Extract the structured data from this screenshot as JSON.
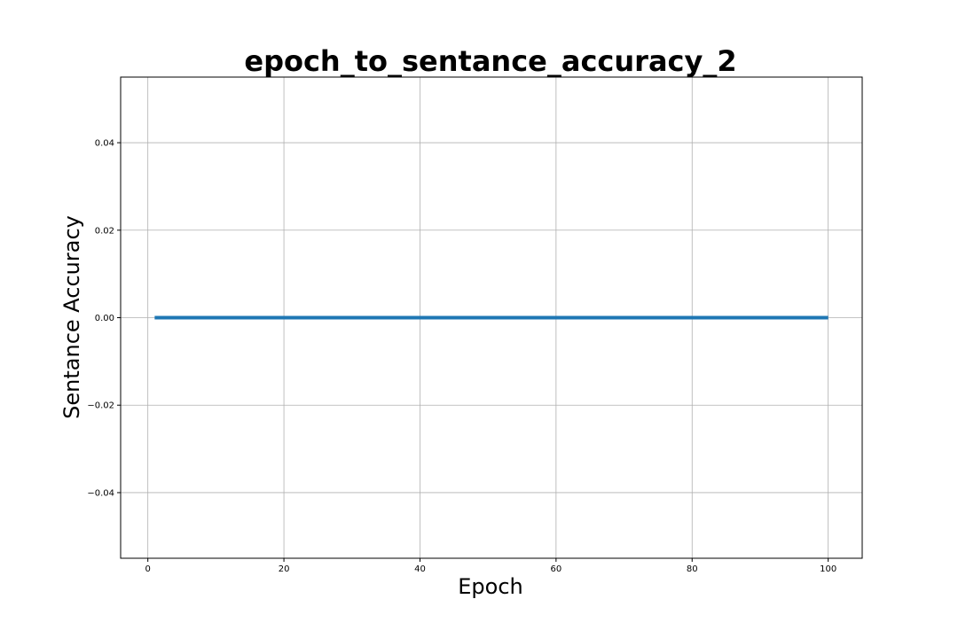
{
  "chart_data": {
    "type": "line",
    "title": "epoch_to_sentance_accuracy_2",
    "xlabel": "Epoch",
    "ylabel": "Sentance Accuracy",
    "xlim": [
      -4,
      105
    ],
    "ylim": [
      -0.055,
      0.055
    ],
    "x_ticks": [
      0,
      20,
      40,
      60,
      80,
      100
    ],
    "x_tick_labels": [
      "0",
      "20",
      "40",
      "60",
      "80",
      "100"
    ],
    "y_ticks": [
      -0.04,
      -0.02,
      0.0,
      0.02,
      0.04
    ],
    "y_tick_labels": [
      "−0.04",
      "−0.02",
      "0.00",
      "0.02",
      "0.04"
    ],
    "grid": true,
    "series": [
      {
        "color": "#1f77b4",
        "x": [
          1,
          100
        ],
        "y": [
          0.0,
          0.0
        ]
      }
    ]
  }
}
